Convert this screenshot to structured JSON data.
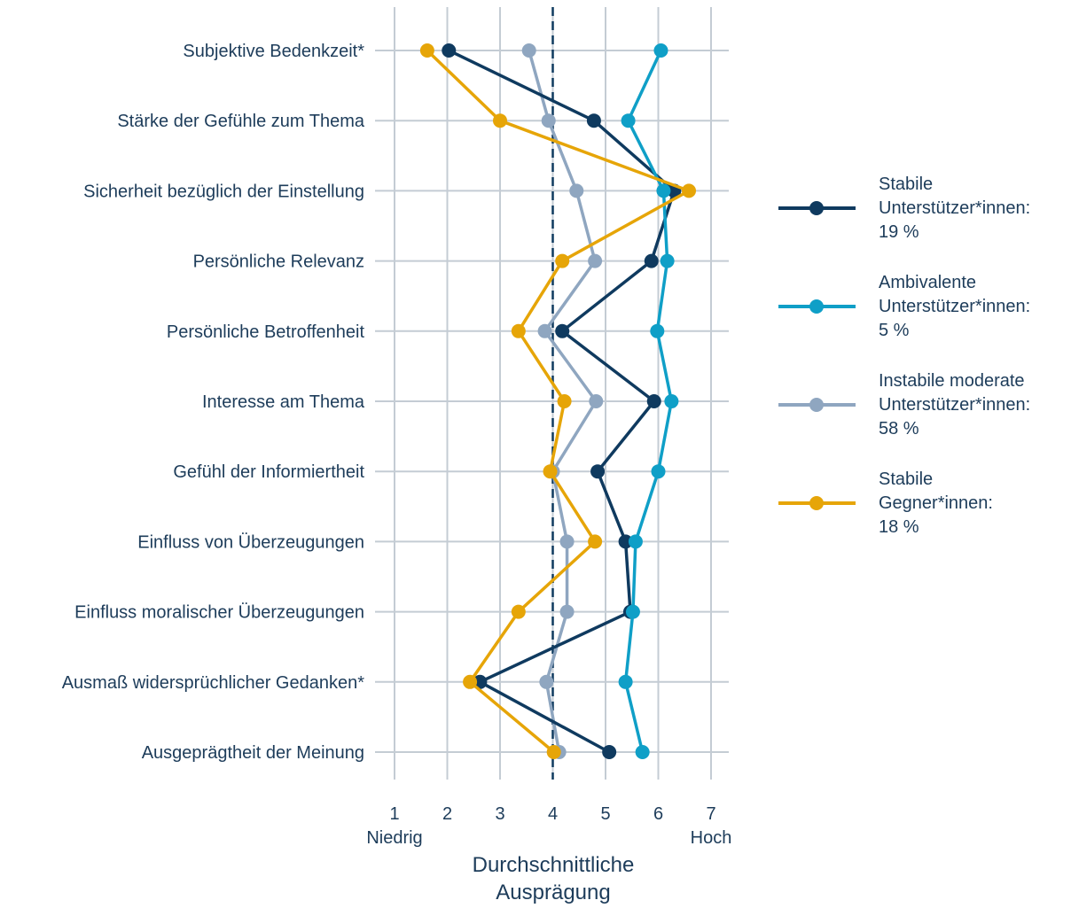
{
  "chart_data": {
    "type": "line",
    "categories": [
      "Subjektive Bedenkzeit*",
      "Stärke der Gefühle zum Thema",
      "Sicherheit bezüglich der Einstellung",
      "Persönliche Relevanz",
      "Persönliche Betroffenheit",
      "Interesse am Thema",
      "Gefühl der Informiertheit",
      "Einfluss von Überzeugungen",
      "Einfluss moralischer Überzeugungen",
      "Ausmaß widersprüchlicher Gedanken*",
      "Ausgeprägtheit der Meinung"
    ],
    "xticks": [
      "1",
      "2",
      "3",
      "4",
      "5",
      "6",
      "7"
    ],
    "xlim": [
      1,
      7
    ],
    "x_low_label": "Niedrig",
    "x_high_label": "Hoch",
    "xlabel_line1": "Durchschnittliche",
    "xlabel_line2": "Ausprägung",
    "reference_line": 4,
    "series": [
      {
        "name_lines": [
          "Stabile",
          "Unterstützer*innen:",
          "19 %"
        ],
        "color": "#0f3a5f",
        "values": [
          2.03,
          4.78,
          6.3,
          5.87,
          4.18,
          5.92,
          4.85,
          5.38,
          5.47,
          2.62,
          5.07
        ]
      },
      {
        "name_lines": [
          "Ambivalente",
          "Unterstützer*innen:",
          "5 %"
        ],
        "color": "#0f9fc7",
        "values": [
          6.05,
          5.43,
          6.1,
          6.17,
          5.98,
          6.25,
          6.0,
          5.57,
          5.52,
          5.38,
          5.7
        ]
      },
      {
        "name_lines": [
          "Instabile moderate",
          "Unterstützer*innen:",
          "58 %"
        ],
        "color": "#8fa6c0",
        "values": [
          3.55,
          3.92,
          4.45,
          4.8,
          3.85,
          4.82,
          4.0,
          4.27,
          4.27,
          3.88,
          4.12
        ]
      },
      {
        "name_lines": [
          "Stabile",
          "Gegner*innen:",
          "18 %"
        ],
        "color": "#e6a508",
        "values": [
          1.62,
          3.0,
          6.58,
          4.18,
          3.35,
          4.22,
          3.95,
          4.8,
          3.35,
          2.43,
          4.02
        ]
      }
    ],
    "grid": true,
    "legend_position": "right"
  }
}
